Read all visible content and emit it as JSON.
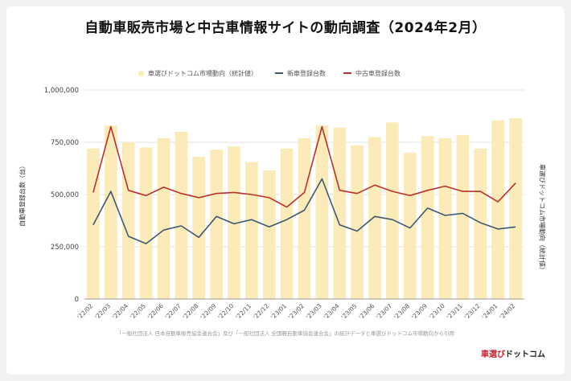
{
  "title": "自動車販売市場と中古車情報サイトの動向調査（2024年2月）",
  "legend": {
    "bar": "車選びドットコム市場動向（統計値）",
    "new": "新車登録台数",
    "used": "中古車登録台数"
  },
  "ylabel_left": "自動車登録台数（台）",
  "ylabel_right": "車選びドットコム市場動向（統計値）",
  "source": "「一般社団法人 日本自動車販売協会連合会」及び「一般社団法人 全国軽自動車協会連合会」の統計データと車選びドットコム市場動向から引用",
  "logo": {
    "red": "車選び",
    "dark": "ドットコム"
  },
  "chart_data": {
    "type": "bar+line",
    "title": "自動車販売市場と中古車情報サイトの動向調査（2024年2月）",
    "categories": [
      "'22/02",
      "'22/03",
      "'22/04",
      "'22/05",
      "'22/06",
      "'22/07",
      "'22/08",
      "'22/09",
      "'22/10",
      "'22/11",
      "'22/12",
      "'23/01",
      "'23/02",
      "'23/03",
      "'23/04",
      "'23/05",
      "'23/06",
      "'23/07",
      "'23/08",
      "'23/09",
      "'23/10",
      "'23/11",
      "'23/12",
      "'24/01",
      "'24/02"
    ],
    "ylim": [
      0,
      1000000
    ],
    "yticks": [
      0,
      250000,
      500000,
      750000,
      1000000
    ],
    "ytick_labels": [
      "0",
      "250,000",
      "500,000",
      "750,000",
      "1,000,000"
    ],
    "grid": true,
    "legend_position": "top",
    "series": [
      {
        "name": "車選びドットコム市場動向（統計値）",
        "kind": "bar",
        "axis": "right",
        "color": "#fbebb9",
        "values": [
          720000,
          830000,
          750000,
          725000,
          770000,
          800000,
          680000,
          715000,
          730000,
          655000,
          615000,
          720000,
          770000,
          830000,
          820000,
          735000,
          775000,
          845000,
          700000,
          780000,
          770000,
          785000,
          720000,
          855000,
          865000
        ]
      },
      {
        "name": "新車登録台数",
        "kind": "line",
        "color": "#3f5872",
        "values": [
          355000,
          515000,
          300000,
          265000,
          330000,
          350000,
          295000,
          395000,
          360000,
          380000,
          345000,
          380000,
          425000,
          575000,
          355000,
          325000,
          395000,
          380000,
          340000,
          435000,
          400000,
          410000,
          365000,
          335000,
          345000
        ]
      },
      {
        "name": "中古車登録台数",
        "kind": "line",
        "color": "#b8312f",
        "values": [
          510000,
          825000,
          520000,
          495000,
          535000,
          505000,
          485000,
          505000,
          510000,
          500000,
          485000,
          440000,
          510000,
          825000,
          520000,
          505000,
          545000,
          515000,
          495000,
          520000,
          540000,
          515000,
          515000,
          465000,
          555000
        ]
      }
    ]
  }
}
